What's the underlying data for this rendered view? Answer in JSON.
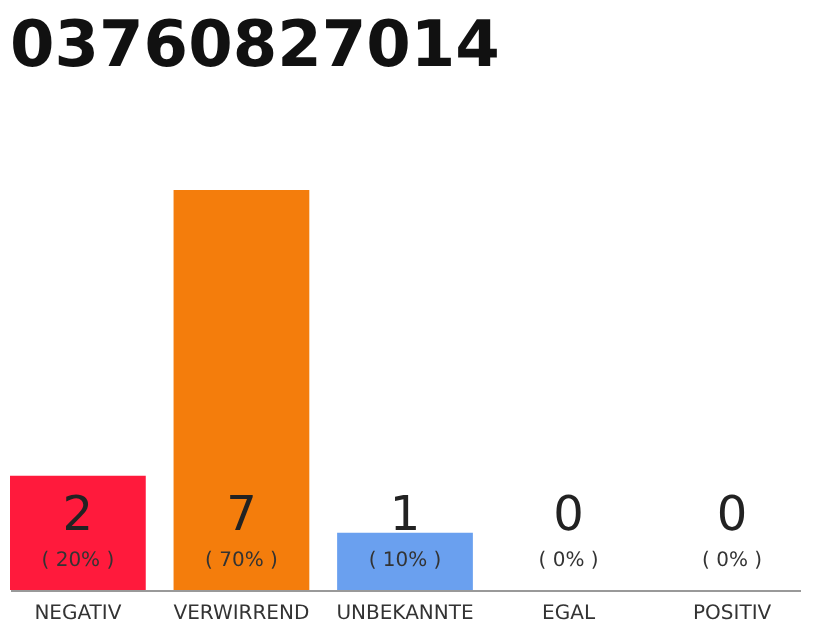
{
  "chart_data": {
    "type": "bar",
    "title": "03760827014",
    "categories": [
      "NEGATIV",
      "VERWIRREND",
      "UNBEKANNTE",
      "EGAL",
      "POSITIV"
    ],
    "values": [
      2,
      7,
      1,
      0,
      0
    ],
    "colors": [
      "#ff1a3c",
      "#f47d0c",
      "#6aa0ef",
      "#eeeeee",
      "#eeeeee"
    ],
    "data_labels": true,
    "annotations": [
      {
        "text": "( 20% )",
        "x": "NEGATIV",
        "y": 0
      },
      {
        "text": "( 70% )",
        "x": "VERWIRREND",
        "y": 0
      },
      {
        "text": "( 10% )",
        "x": "UNBEKANNTE",
        "y": 0
      },
      {
        "text": "( 0% )",
        "x": "EGAL",
        "y": 0
      },
      {
        "text": "( 0% )",
        "x": "POSITIV",
        "y": 0
      }
    ]
  }
}
